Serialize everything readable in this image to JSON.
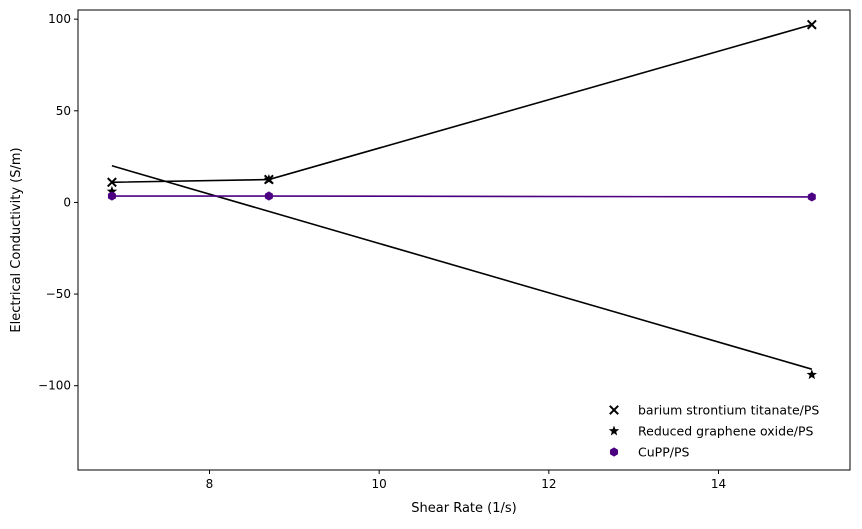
{
  "chart_data": {
    "type": "scatter",
    "xlabel": "Shear Rate (1/s)",
    "ylabel": "Electrical Conductivity (S/m)",
    "xlim": [
      6.45,
      15.55
    ],
    "ylim": [
      -146,
      105
    ],
    "xticks": [
      8,
      10,
      12,
      14
    ],
    "xtick_labels": [
      "8",
      "10",
      "12",
      "14"
    ],
    "yticks": [
      100,
      50,
      0,
      -50,
      -100
    ],
    "ytick_labels": [
      "100",
      "50",
      "0",
      "−50",
      "−100"
    ],
    "grid": false,
    "legend_position": "lower-right",
    "series": [
      {
        "name": "barium strontium titanate/PS",
        "marker": "x",
        "color": "#000000",
        "x": [
          6.85,
          8.7,
          15.1
        ],
        "y": [
          11,
          12.5,
          97
        ],
        "line_color": "#000000",
        "line_type": "segments"
      },
      {
        "name": "Reduced graphene oxide/PS",
        "marker": "star",
        "color": "#000000",
        "x": [
          6.85,
          8.7,
          15.1
        ],
        "y": [
          6,
          12.5,
          -94
        ],
        "line_color": "#000000",
        "line_type": "fit",
        "fit_line": {
          "x": [
            6.85,
            15.1
          ],
          "y": [
            20,
            -91
          ]
        }
      },
      {
        "name": "CuPP/PS",
        "marker": "hexagon",
        "color": "#4b0082",
        "x": [
          6.85,
          8.7,
          15.1
        ],
        "y": [
          3.5,
          3.5,
          3
        ],
        "line_color": "#4b0082",
        "line_type": "segments"
      }
    ]
  }
}
